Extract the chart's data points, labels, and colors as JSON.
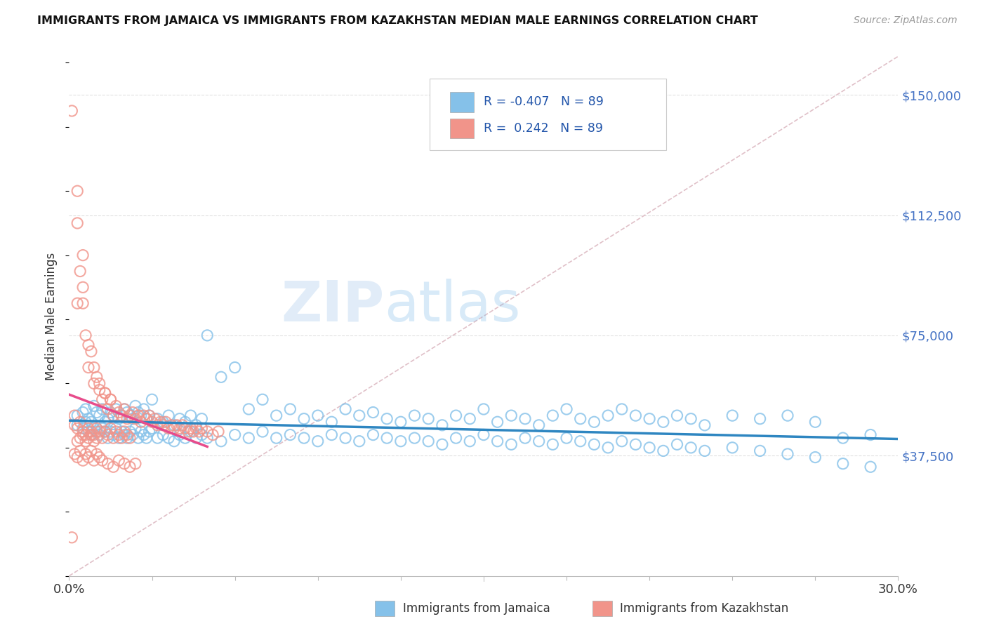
{
  "title": "IMMIGRANTS FROM JAMAICA VS IMMIGRANTS FROM KAZAKHSTAN MEDIAN MALE EARNINGS CORRELATION CHART",
  "source": "Source: ZipAtlas.com",
  "ylabel": "Median Male Earnings",
  "yticks": [
    37500,
    75000,
    112500,
    150000
  ],
  "ytick_labels": [
    "$37,500",
    "$75,000",
    "$112,500",
    "$150,000"
  ],
  "ylim": [
    0,
    162000
  ],
  "xlim": [
    0.0,
    0.3
  ],
  "color_jamaica": "#85c1e9",
  "color_kazakhstan": "#f1948a",
  "color_jamaica_line": "#2e86c1",
  "color_kazakhstan_line": "#e74c8b",
  "color_diagonal": "#d5d5d5",
  "watermark_zip": "ZIP",
  "watermark_atlas": "atlas",
  "jamaica_x": [
    0.003,
    0.005,
    0.006,
    0.007,
    0.008,
    0.009,
    0.01,
    0.011,
    0.012,
    0.013,
    0.014,
    0.015,
    0.016,
    0.017,
    0.018,
    0.019,
    0.02,
    0.021,
    0.022,
    0.023,
    0.024,
    0.025,
    0.026,
    0.027,
    0.028,
    0.029,
    0.03,
    0.032,
    0.034,
    0.036,
    0.038,
    0.04,
    0.042,
    0.044,
    0.046,
    0.048,
    0.05,
    0.055,
    0.06,
    0.065,
    0.07,
    0.075,
    0.08,
    0.085,
    0.09,
    0.095,
    0.1,
    0.105,
    0.11,
    0.115,
    0.12,
    0.125,
    0.13,
    0.135,
    0.14,
    0.145,
    0.15,
    0.155,
    0.16,
    0.165,
    0.17,
    0.175,
    0.18,
    0.185,
    0.19,
    0.195,
    0.2,
    0.205,
    0.21,
    0.215,
    0.22,
    0.225,
    0.23,
    0.24,
    0.25,
    0.26,
    0.27,
    0.28,
    0.29
  ],
  "jamaica_y": [
    50000,
    51000,
    52000,
    49000,
    48000,
    53000,
    51000,
    50000,
    52000,
    48000,
    49000,
    51000,
    50000,
    52000,
    49000,
    50000,
    52000,
    51000,
    50000,
    49000,
    53000,
    51000,
    50000,
    52000,
    49000,
    50000,
    55000,
    49000,
    48000,
    50000,
    47000,
    49000,
    48000,
    50000,
    47000,
    49000,
    75000,
    62000,
    65000,
    52000,
    55000,
    50000,
    52000,
    49000,
    50000,
    48000,
    52000,
    50000,
    51000,
    49000,
    48000,
    50000,
    49000,
    47000,
    50000,
    49000,
    52000,
    48000,
    50000,
    49000,
    47000,
    50000,
    52000,
    49000,
    48000,
    50000,
    52000,
    50000,
    49000,
    48000,
    50000,
    49000,
    47000,
    50000,
    49000,
    50000,
    48000,
    43000,
    44000
  ],
  "jamaica_y2": [
    47000,
    46000,
    48000,
    45000,
    44000,
    46000,
    45000,
    44000,
    46000,
    45000,
    43000,
    45000,
    44000,
    46000,
    43000,
    45000,
    44000,
    43000,
    45000,
    44000,
    46000,
    43000,
    45000,
    44000,
    43000,
    45000,
    46000,
    43000,
    44000,
    43000,
    42000,
    44000,
    43000,
    45000,
    43000,
    44000,
    43000,
    42000,
    44000,
    43000,
    45000,
    43000,
    44000,
    43000,
    42000,
    44000,
    43000,
    42000,
    44000,
    43000,
    42000,
    43000,
    42000,
    41000,
    43000,
    42000,
    44000,
    42000,
    41000,
    43000,
    42000,
    41000,
    43000,
    42000,
    41000,
    40000,
    42000,
    41000,
    40000,
    39000,
    41000,
    40000,
    39000,
    40000,
    39000,
    38000,
    37000,
    35000,
    34000
  ],
  "kaz_x": [
    0.001,
    0.002,
    0.003,
    0.004,
    0.005,
    0.006,
    0.007,
    0.008,
    0.009,
    0.01,
    0.011,
    0.012,
    0.013,
    0.014,
    0.015,
    0.016,
    0.017,
    0.018,
    0.019,
    0.02,
    0.021,
    0.022,
    0.023,
    0.024,
    0.025,
    0.026,
    0.027,
    0.028,
    0.029,
    0.03,
    0.031,
    0.032,
    0.033,
    0.034,
    0.035,
    0.036,
    0.037,
    0.038,
    0.039,
    0.04,
    0.041,
    0.042,
    0.043,
    0.044,
    0.045,
    0.046,
    0.047,
    0.048,
    0.05,
    0.052,
    0.054,
    0.003,
    0.005,
    0.007,
    0.009,
    0.011,
    0.013,
    0.015,
    0.003,
    0.005
  ],
  "kaz_y": [
    145000,
    50000,
    110000,
    95000,
    85000,
    75000,
    65000,
    70000,
    60000,
    62000,
    58000,
    55000,
    57000,
    52000,
    55000,
    50000,
    53000,
    51000,
    50000,
    52000,
    49000,
    50000,
    51000,
    49000,
    50000,
    48000,
    50000,
    49000,
    50000,
    48000,
    49000,
    47000,
    48000,
    47000,
    48000,
    46000,
    47000,
    46000,
    47000,
    46000,
    47000,
    46000,
    45000,
    46000,
    45000,
    46000,
    45000,
    46000,
    45000,
    44000,
    45000,
    120000,
    100000,
    72000,
    65000,
    60000,
    57000,
    55000,
    85000,
    90000
  ],
  "kaz_x2": [
    0.002,
    0.003,
    0.004,
    0.005,
    0.006,
    0.007,
    0.008,
    0.009,
    0.01,
    0.011,
    0.012,
    0.013,
    0.014,
    0.015,
    0.016,
    0.017,
    0.018,
    0.019,
    0.02,
    0.021,
    0.022,
    0.003,
    0.004,
    0.005,
    0.006,
    0.007,
    0.008,
    0.009,
    0.01
  ],
  "kaz_y2": [
    47000,
    46000,
    48000,
    45000,
    44000,
    46000,
    45000,
    44000,
    46000,
    45000,
    43000,
    45000,
    44000,
    46000,
    43000,
    45000,
    44000,
    43000,
    45000,
    44000,
    43000,
    42000,
    43000,
    44000,
    42000,
    43000,
    44000,
    42000,
    43000
  ],
  "kaz_x3": [
    0.002,
    0.003,
    0.004,
    0.005,
    0.006,
    0.007,
    0.008,
    0.009,
    0.01,
    0.011,
    0.012,
    0.014,
    0.016,
    0.018,
    0.02,
    0.022,
    0.024,
    0.001
  ],
  "kaz_y3": [
    38000,
    37000,
    39000,
    36000,
    38000,
    37000,
    39000,
    36000,
    38000,
    37000,
    36000,
    35000,
    34000,
    36000,
    35000,
    34000,
    35000,
    12000
  ]
}
